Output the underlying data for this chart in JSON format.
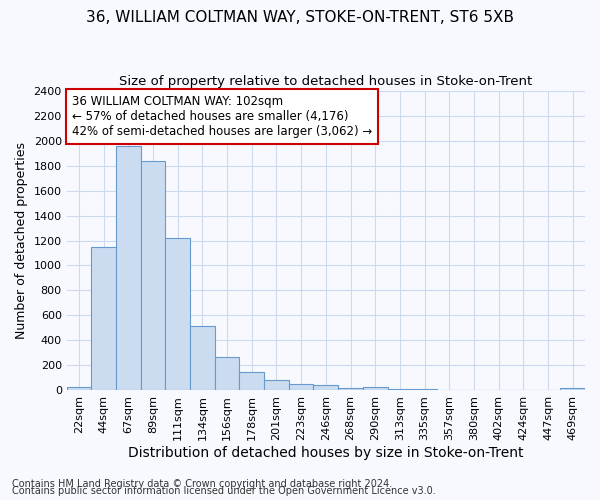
{
  "title": "36, WILLIAM COLTMAN WAY, STOKE-ON-TRENT, ST6 5XB",
  "subtitle": "Size of property relative to detached houses in Stoke-on-Trent",
  "xlabel": "Distribution of detached houses by size in Stoke-on-Trent",
  "ylabel": "Number of detached properties",
  "footnote1": "Contains HM Land Registry data © Crown copyright and database right 2024.",
  "footnote2": "Contains public sector information licensed under the Open Government Licence v3.0.",
  "annotation_line1": "36 WILLIAM COLTMAN WAY: 102sqm",
  "annotation_line2": "← 57% of detached houses are smaller (4,176)",
  "annotation_line3": "42% of semi-detached houses are larger (3,062) →",
  "bar_color": "#ccdcf0",
  "bar_edge_color": "#6699cc",
  "background_color": "#f7f9ff",
  "grid_color": "#ccd9ee",
  "categories": [
    "22sqm",
    "44sqm",
    "67sqm",
    "89sqm",
    "111sqm",
    "134sqm",
    "156sqm",
    "178sqm",
    "201sqm",
    "223sqm",
    "246sqm",
    "268sqm",
    "290sqm",
    "313sqm",
    "335sqm",
    "357sqm",
    "380sqm",
    "402sqm",
    "424sqm",
    "447sqm",
    "469sqm"
  ],
  "values": [
    30,
    1150,
    1960,
    1840,
    1220,
    515,
    265,
    150,
    80,
    50,
    45,
    20,
    30,
    10,
    10,
    5,
    5,
    5,
    5,
    5,
    20
  ],
  "ylim": [
    0,
    2400
  ],
  "yticks": [
    0,
    200,
    400,
    600,
    800,
    1000,
    1200,
    1400,
    1600,
    1800,
    2000,
    2200,
    2400
  ],
  "annotation_box_edge": "#cc0000",
  "title_fontsize": 11,
  "subtitle_fontsize": 9.5,
  "ylabel_fontsize": 9,
  "xlabel_fontsize": 10,
  "tick_fontsize": 8,
  "annotation_fontsize": 8.5,
  "footnote_fontsize": 7
}
